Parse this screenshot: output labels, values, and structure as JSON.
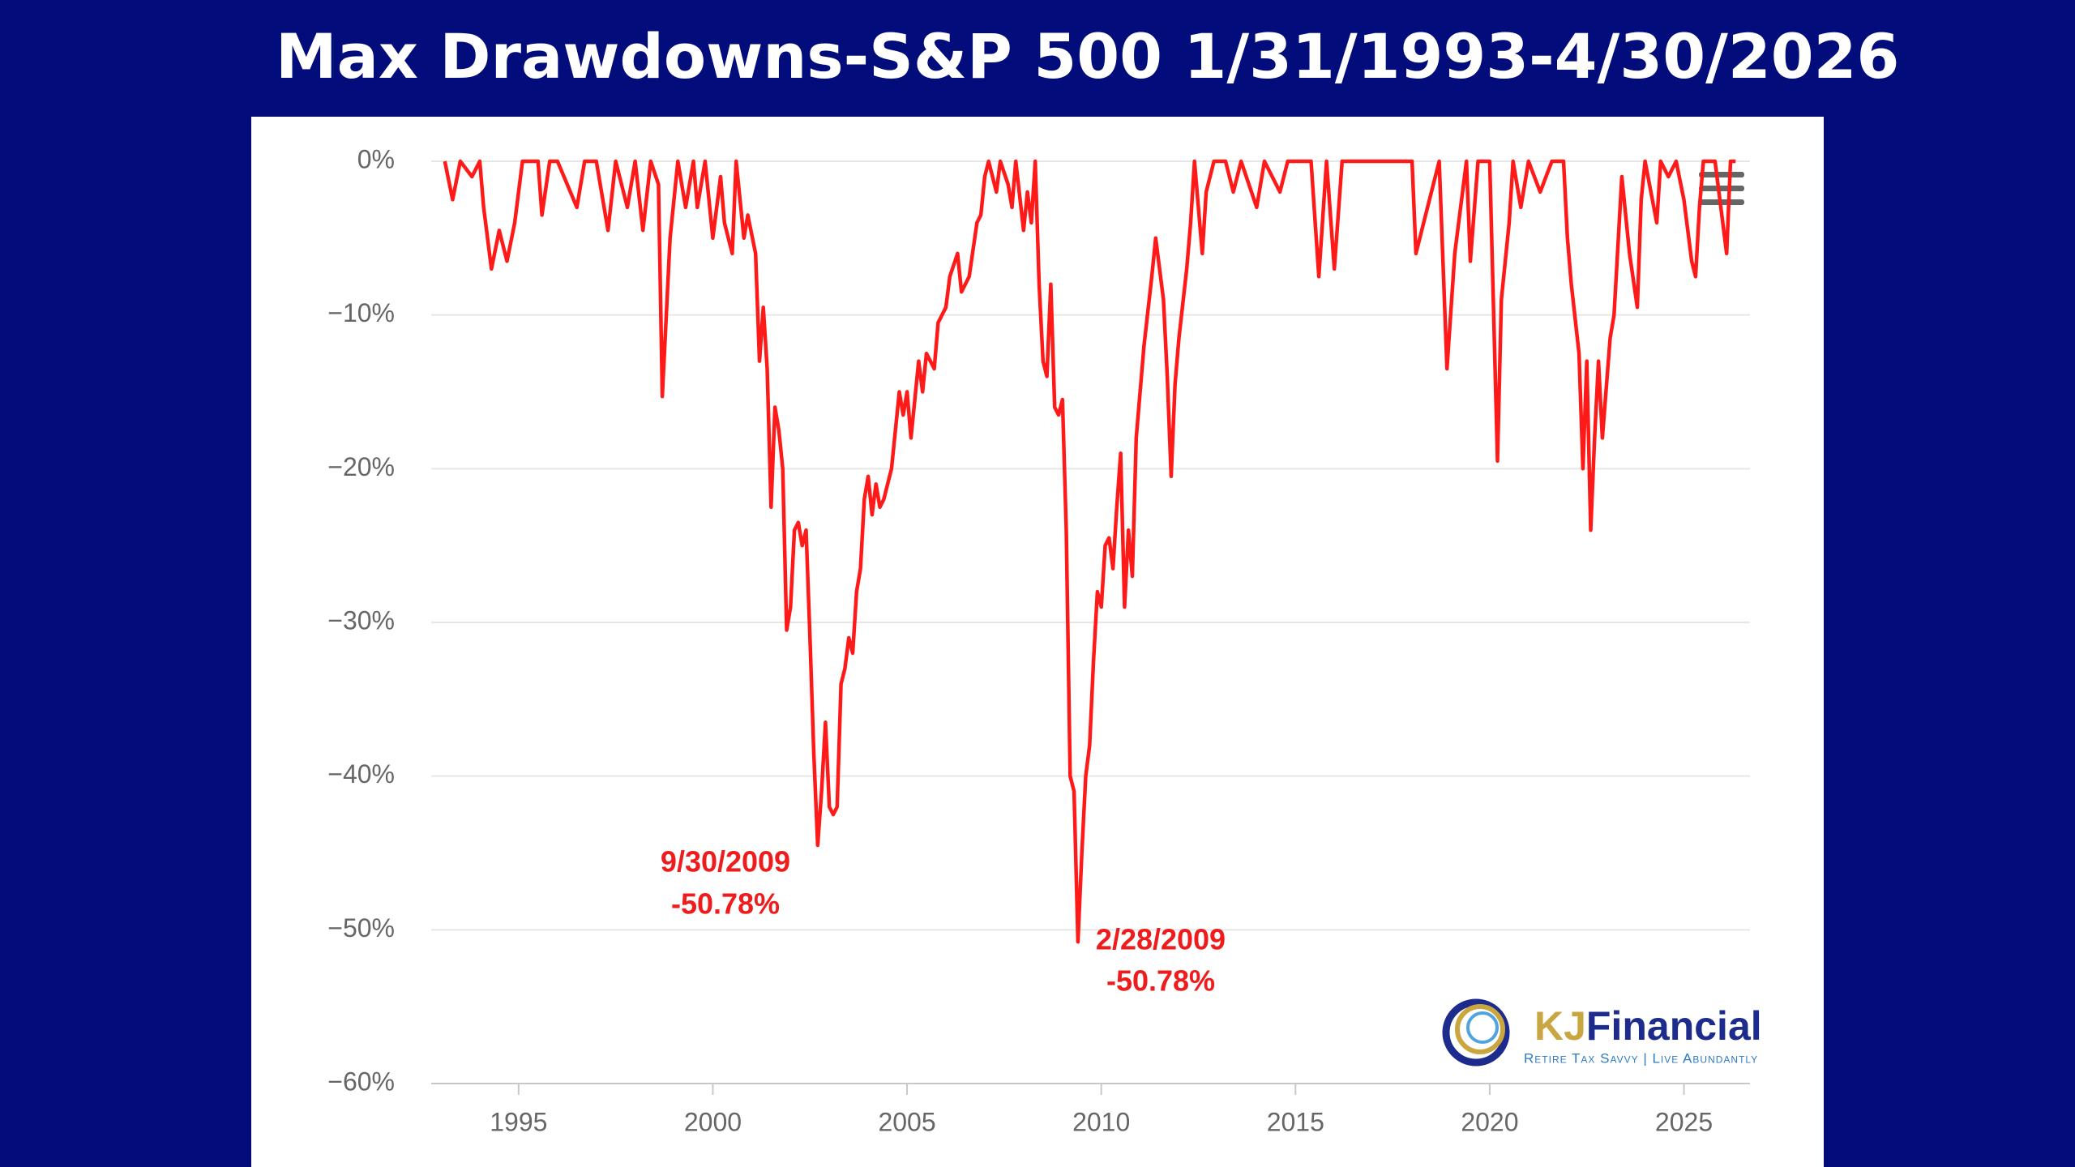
{
  "chart_data": {
    "type": "line",
    "title": "Max Drawdowns-S&P 500 1/31/1993-4/30/2026",
    "color": "#ff1a1a",
    "x": [
      1993.1,
      1993.3,
      1993.5,
      1993.8,
      1994.0,
      1994.1,
      1994.3,
      1994.5,
      1994.7,
      1994.9,
      1995.1,
      1995.5,
      1995.6,
      1995.8,
      1996.0,
      1996.5,
      1996.7,
      1997.0,
      1997.3,
      1997.5,
      1997.8,
      1998.0,
      1998.2,
      1998.4,
      1998.6,
      1998.7,
      1998.9,
      1999.1,
      1999.3,
      1999.5,
      1999.6,
      1999.8,
      2000.0,
      2000.2,
      2000.3,
      2000.5,
      2000.6,
      2000.8,
      2000.9,
      2001.1,
      2001.2,
      2001.3,
      2001.4,
      2001.5,
      2001.6,
      2001.7,
      2001.8,
      2001.9,
      2002.0,
      2002.1,
      2002.2,
      2002.3,
      2002.4,
      2002.5,
      2002.6,
      2002.7,
      2002.8,
      2002.9,
      2003.0,
      2003.1,
      2003.2,
      2003.3,
      2003.4,
      2003.5,
      2003.6,
      2003.7,
      2003.8,
      2003.9,
      2004.0,
      2004.1,
      2004.2,
      2004.3,
      2004.4,
      2004.6,
      2004.8,
      2004.9,
      2005.0,
      2005.1,
      2005.3,
      2005.4,
      2005.5,
      2005.7,
      2005.8,
      2006.0,
      2006.1,
      2006.3,
      2006.4,
      2006.6,
      2006.8,
      2006.9,
      2007.0,
      2007.1,
      2007.3,
      2007.4,
      2007.6,
      2007.7,
      2007.8,
      2008.0,
      2008.1,
      2008.2,
      2008.3,
      2008.4,
      2008.5,
      2008.6,
      2008.7,
      2008.8,
      2008.9,
      2009.0,
      2009.1,
      2009.2,
      2009.3,
      2009.4,
      2009.5,
      2009.6,
      2009.7,
      2009.8,
      2009.9,
      2010.0,
      2010.1,
      2010.2,
      2010.3,
      2010.4,
      2010.5,
      2010.6,
      2010.7,
      2010.8,
      2010.9,
      2011.1,
      2011.3,
      2011.4,
      2011.6,
      2011.7,
      2011.8,
      2011.9,
      2012.0,
      2012.2,
      2012.3,
      2012.4,
      2012.6,
      2012.7,
      2012.9,
      2013.2,
      2013.4,
      2013.6,
      2014.0,
      2014.2,
      2014.6,
      2014.8,
      2015.4,
      2015.6,
      2015.8,
      2016.0,
      2016.2,
      2016.5,
      2017.0,
      2018.0,
      2018.1,
      2018.3,
      2018.7,
      2018.9,
      2019.1,
      2019.4,
      2019.5,
      2019.7,
      2020.0,
      2020.2,
      2020.3,
      2020.5,
      2020.6,
      2020.8,
      2021.0,
      2021.3,
      2021.6,
      2021.9,
      2022.0,
      2022.1,
      2022.3,
      2022.4,
      2022.5,
      2022.6,
      2022.7,
      2022.8,
      2022.9,
      2023.1,
      2023.2,
      2023.4,
      2023.6,
      2023.8,
      2023.9,
      2024.0,
      2024.3,
      2024.4,
      2024.6,
      2024.8,
      2025.0,
      2025.2,
      2025.3,
      2025.4,
      2025.5,
      2025.8,
      2026.1,
      2026.2,
      2026.33
    ],
    "values": [
      0,
      -2.5,
      0,
      -1,
      0,
      -3,
      -7,
      -4.5,
      -6.5,
      -4,
      0,
      0,
      -3.5,
      0,
      0,
      -3,
      0,
      0,
      -4.5,
      0,
      -3,
      0,
      -4.5,
      0,
      -1.5,
      -15.3,
      -5,
      0,
      -3,
      0,
      -3,
      0,
      -5,
      -1,
      -4,
      -6,
      0,
      -5,
      -3.5,
      -6,
      -13,
      -9.5,
      -13.5,
      -22.5,
      -16,
      -17.5,
      -20,
      -30.5,
      -29,
      -24,
      -23.5,
      -25,
      -24,
      -31,
      -38.5,
      -44.5,
      -41,
      -36.5,
      -42,
      -42.5,
      -42,
      -34,
      -33,
      -31,
      -32,
      -28,
      -26.5,
      -22,
      -20.5,
      -23,
      -21,
      -22.5,
      -22,
      -20,
      -15,
      -16.5,
      -15,
      -18,
      -13,
      -15,
      -12.5,
      -13.5,
      -10.5,
      -9.5,
      -7.5,
      -6,
      -8.5,
      -7.5,
      -4,
      -3.5,
      -1,
      0,
      -2,
      0,
      -1.5,
      -3,
      0,
      -4.5,
      -2,
      -4,
      0,
      -8,
      -13,
      -14,
      -8,
      -16,
      -16.5,
      -15.5,
      -24,
      -40,
      -41,
      -50.78,
      -45,
      -40,
      -38,
      -32.5,
      -28,
      -29,
      -25,
      -24.5,
      -26.5,
      -22.5,
      -19,
      -29,
      -24,
      -27,
      -18,
      -12,
      -7.5,
      -5,
      -9,
      -14,
      -20.5,
      -14.5,
      -11.5,
      -7,
      -4,
      0,
      -6,
      -2,
      0,
      0,
      -2,
      0,
      -3,
      0,
      -2,
      0,
      0,
      -7.5,
      0,
      -7,
      0,
      0,
      0,
      0,
      -6,
      -4,
      0,
      -13.5,
      -6,
      0,
      -6.5,
      0,
      0,
      -19.5,
      -9,
      -4,
      0,
      -3,
      0,
      -2,
      0,
      0,
      -5,
      -8,
      -12.5,
      -20,
      -13,
      -24,
      -18,
      -13,
      -18,
      -11.5,
      -10,
      -1,
      -6,
      -9.5,
      -2.5,
      0,
      -4,
      0,
      -1,
      0,
      -2.5,
      -6.5,
      -7.5,
      -3,
      0,
      0,
      -6,
      0,
      0
    ],
    "xlim": [
      1992.75,
      2026.7
    ],
    "xticks": [
      1995,
      2000,
      2005,
      2010,
      2015,
      2020,
      2025
    ],
    "ylim": [
      -60,
      0
    ],
    "yticks": [
      {
        "value": 0,
        "label": "0%"
      },
      {
        "value": -10,
        "label": "−10%"
      },
      {
        "value": -20,
        "label": "−20%"
      },
      {
        "value": -30,
        "label": "−30%"
      },
      {
        "value": -40,
        "label": "−40%"
      },
      {
        "value": -50,
        "label": "−50%"
      },
      {
        "value": -60,
        "label": "−60%"
      }
    ],
    "grid": true,
    "annotations": [
      "9/30/2009",
      "-50.78%",
      "2/28/2009",
      "-50.78%"
    ],
    "logo": {
      "brand": [
        "KJ",
        "Financial"
      ],
      "tagline": "Retire Tax Savvy | Live Abundantly"
    }
  }
}
